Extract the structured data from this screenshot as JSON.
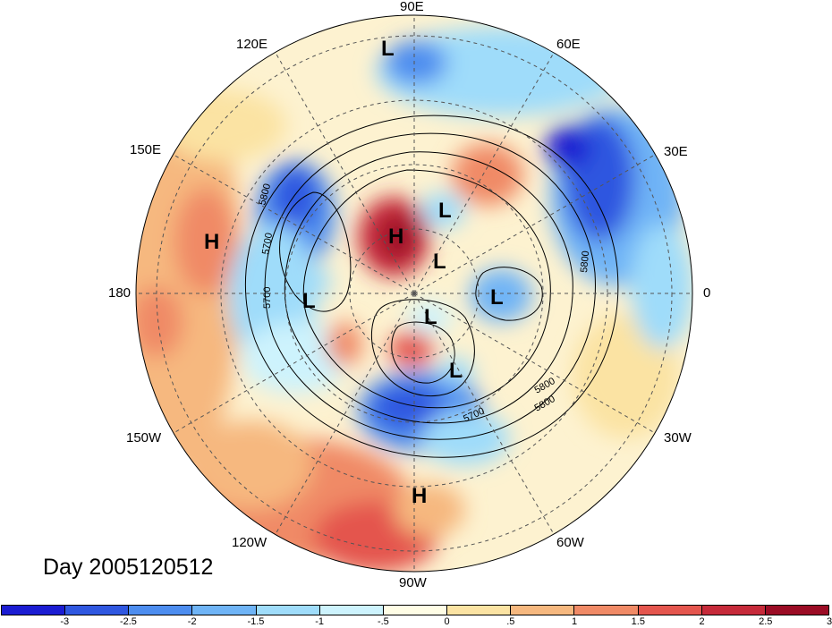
{
  "title": "Day 2005120512",
  "longitude_labels": [
    {
      "text": "90E",
      "angle_deg": 90
    },
    {
      "text": "60E",
      "angle_deg": 60
    },
    {
      "text": "30E",
      "angle_deg": 30
    },
    {
      "text": "0",
      "angle_deg": 0
    },
    {
      "text": "30W",
      "angle_deg": -30
    },
    {
      "text": "60W",
      "angle_deg": -60
    },
    {
      "text": "90W",
      "angle_deg": -90
    },
    {
      "text": "120W",
      "angle_deg": -120
    },
    {
      "text": "150W",
      "angle_deg": -150
    },
    {
      "text": "180",
      "angle_deg": 180
    },
    {
      "text": "150E",
      "angle_deg": 150
    },
    {
      "text": "120E",
      "angle_deg": 120
    }
  ],
  "pressure_systems": [
    {
      "type": "L",
      "label": "L"
    },
    {
      "type": "H",
      "label": "H"
    },
    {
      "type": "H",
      "label": "H"
    },
    {
      "type": "L",
      "label": "L"
    },
    {
      "type": "L",
      "label": "L"
    },
    {
      "type": "L",
      "label": "L"
    },
    {
      "type": "L",
      "label": "L"
    },
    {
      "type": "L",
      "label": "L"
    },
    {
      "type": "L",
      "label": "L"
    },
    {
      "type": "H",
      "label": "H"
    }
  ],
  "contour_labels": [
    "5800",
    "5700",
    "5700",
    "5800",
    "5700",
    "5800",
    "5800"
  ],
  "colorbar": {
    "ticks": [
      "-3",
      "-2.5",
      "-2",
      "-1.5",
      "-1",
      "-.5",
      "0",
      ".5",
      "1",
      "1.5",
      "2",
      "2.5",
      "3"
    ],
    "colors": [
      "#1b1cd2",
      "#2f57e0",
      "#4d8def",
      "#6fb4f6",
      "#9fdcfa",
      "#cdf3fd",
      "#fffde5",
      "#fbe3a3",
      "#f6b87f",
      "#f08a66",
      "#e4554e",
      "#c62a3a",
      "#9b0c25"
    ]
  }
}
